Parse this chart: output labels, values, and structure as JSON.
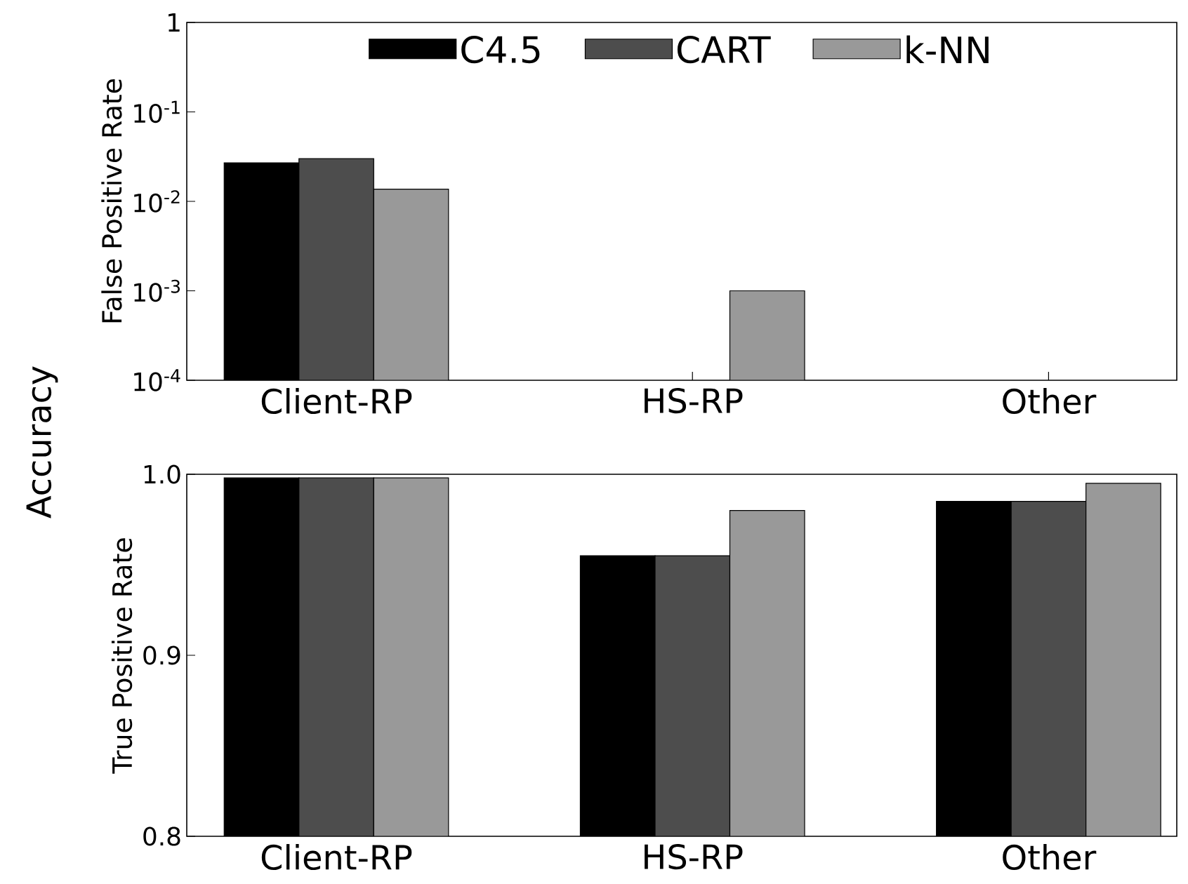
{
  "chart_data": [
    {
      "type": "bar",
      "ylabel": "False Positive Rate",
      "annotations": [
        "Accuracy"
      ],
      "categories": [
        "Client-RP",
        "HS-RP",
        "Other"
      ],
      "log": "y",
      "ylim": [
        0.0001,
        1
      ],
      "yticks": [
        {
          "value": 0.0001,
          "label": "10$^{-4}$"
        },
        {
          "value": 0.001,
          "label": "10$^{-3}$"
        },
        {
          "value": 0.01,
          "label": "10$^{-2}$"
        },
        {
          "value": 0.1,
          "label": "10$^{-1}$"
        },
        1
      ],
      "legend": "top",
      "series": [
        {
          "name": "C4.5",
          "color": "#000000",
          "values": [
            0.027,
            null,
            null
          ]
        },
        {
          "name": "CART",
          "color": "#4d4d4d",
          "values": [
            0.03,
            null,
            null
          ]
        },
        {
          "name": "k-NN",
          "color": "#999999",
          "values": [
            0.0137,
            0.001,
            null
          ]
        }
      ]
    },
    {
      "type": "bar",
      "ylabel": "True Positive Rate",
      "categories": [
        "Client-RP",
        "HS-RP",
        "Other"
      ],
      "ylim": [
        0.8,
        1.0
      ],
      "yticks": [
        0.8,
        0.9,
        {
          "value": 1.0,
          "label": "1.0"
        }
      ],
      "series": [
        {
          "color": "#000000",
          "values": [
            0.998,
            0.955,
            0.985
          ]
        },
        {
          "color": "#4d4d4d",
          "values": [
            0.998,
            0.955,
            0.985
          ]
        },
        {
          "color": "#999999",
          "values": [
            0.998,
            0.98,
            0.995
          ]
        }
      ]
    }
  ]
}
